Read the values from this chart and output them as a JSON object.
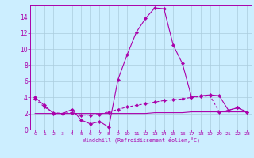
{
  "xlabel": "Windchill (Refroidissement éolien,°C)",
  "background_color": "#cceeff",
  "grid_color": "#aaccdd",
  "line_color": "#aa00aa",
  "xlim": [
    -0.5,
    23.5
  ],
  "ylim": [
    0,
    15.5
  ],
  "ytick_max": 14,
  "xticks": [
    0,
    1,
    2,
    3,
    4,
    5,
    6,
    7,
    8,
    9,
    10,
    11,
    12,
    13,
    14,
    15,
    16,
    17,
    18,
    19,
    20,
    21,
    22,
    23
  ],
  "yticks": [
    0,
    2,
    4,
    6,
    8,
    10,
    12,
    14
  ],
  "series1_x": [
    0,
    1,
    2,
    3,
    4,
    5,
    6,
    7,
    8,
    9,
    10,
    11,
    12,
    13,
    14,
    15,
    16,
    17,
    18,
    19,
    20,
    21,
    22,
    23
  ],
  "series1_y": [
    4.0,
    3.0,
    2.0,
    2.0,
    2.5,
    1.2,
    0.7,
    1.0,
    0.3,
    6.2,
    9.3,
    12.1,
    13.8,
    15.1,
    15.0,
    10.5,
    8.2,
    4.0,
    4.2,
    4.3,
    4.2,
    2.4,
    2.7,
    2.2
  ],
  "series2_x": [
    0,
    1,
    2,
    3,
    4,
    5,
    6,
    7,
    8,
    9,
    10,
    11,
    12,
    13,
    14,
    15,
    16,
    17,
    18,
    19,
    20,
    21,
    22,
    23
  ],
  "series2_y": [
    3.8,
    2.8,
    2.1,
    2.0,
    2.1,
    1.8,
    1.8,
    1.9,
    2.2,
    2.5,
    2.8,
    3.0,
    3.2,
    3.4,
    3.6,
    3.7,
    3.8,
    4.0,
    4.1,
    4.2,
    2.2,
    2.4,
    2.7,
    2.2
  ],
  "series3_x": [
    0,
    1,
    2,
    3,
    4,
    5,
    6,
    7,
    8,
    9,
    10,
    11,
    12,
    13,
    14,
    15,
    16,
    17,
    18,
    19,
    20,
    21,
    22,
    23
  ],
  "series3_y": [
    2.0,
    2.0,
    2.0,
    2.0,
    2.0,
    2.0,
    2.0,
    2.0,
    2.0,
    2.0,
    2.0,
    2.0,
    2.0,
    2.1,
    2.1,
    2.1,
    2.1,
    2.2,
    2.2,
    2.2,
    2.2,
    2.2,
    2.2,
    2.2
  ]
}
